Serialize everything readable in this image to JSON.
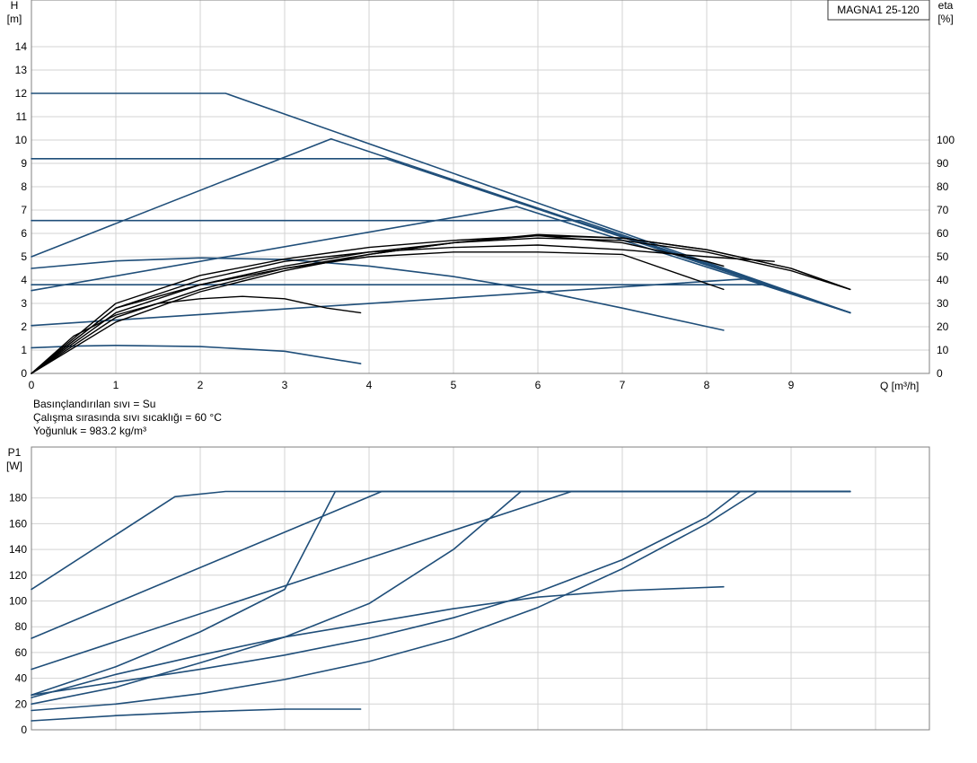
{
  "model_label": "MAGNA1 25-120",
  "info": {
    "liquid": "Basınçlandırılan sıvı = Su",
    "temperature": "Çalışma sırasında sıvı sıcaklığı = 60 °C",
    "density": "Yoğunluk = 983.2 kg/m³"
  },
  "chart_data": [
    {
      "type": "line",
      "x_axis": {
        "label": "Q [m³/h]",
        "range": [
          0,
          10.6
        ],
        "ticks": [
          0,
          1,
          2,
          3,
          4,
          5,
          6,
          7,
          8,
          9
        ]
      },
      "y_axis_left": {
        "label_line1": "H",
        "label_line2": "[m]",
        "range": [
          0,
          16
        ],
        "ticks": [
          0,
          1,
          2,
          3,
          4,
          5,
          6,
          7,
          8,
          9,
          10,
          11,
          12,
          13,
          14
        ]
      },
      "y_axis_right": {
        "label_line1": "eta",
        "label_line2": "[%]",
        "range": [
          0,
          160
        ],
        "ticks": [
          0,
          10,
          20,
          30,
          40,
          50,
          60,
          70,
          80,
          90,
          100
        ]
      },
      "grid": true,
      "head_curves": [
        {
          "points": [
            [
              0,
              12
            ],
            [
              2.3,
              12
            ],
            [
              9.7,
              2.6
            ]
          ]
        },
        {
          "points": [
            [
              0,
              5
            ],
            [
              3.55,
              10.05
            ],
            [
              9.7,
              2.6
            ]
          ]
        },
        {
          "points": [
            [
              0,
              3.55
            ],
            [
              5.75,
              7.15
            ],
            [
              9.7,
              2.6
            ]
          ]
        },
        {
          "points": [
            [
              0,
              2.05
            ],
            [
              8.45,
              4.05
            ],
            [
              9.7,
              2.6
            ]
          ]
        },
        {
          "points": [
            [
              0,
              9.2
            ],
            [
              4.2,
              9.2
            ],
            [
              9.7,
              2.6
            ]
          ]
        },
        {
          "points": [
            [
              0,
              6.55
            ],
            [
              6.5,
              6.55
            ],
            [
              9.7,
              2.6
            ]
          ]
        },
        {
          "points": [
            [
              0,
              3.8
            ],
            [
              8.7,
              3.8
            ],
            [
              9.7,
              2.6
            ]
          ]
        },
        {
          "points": [
            [
              0,
              4.5
            ],
            [
              1,
              4.82
            ],
            [
              2,
              4.95
            ],
            [
              3,
              4.88
            ],
            [
              4,
              4.6
            ],
            [
              5,
              4.15
            ],
            [
              6,
              3.55
            ],
            [
              7,
              2.8
            ],
            [
              8.2,
              1.85
            ]
          ]
        },
        {
          "points": [
            [
              0,
              1.1
            ],
            [
              0.5,
              1.17
            ],
            [
              1,
              1.2
            ],
            [
              2,
              1.15
            ],
            [
              3,
              0.95
            ],
            [
              3.9,
              0.42
            ]
          ]
        }
      ],
      "efficiency_curves": [
        {
          "points": [
            [
              0,
              0
            ],
            [
              0.5,
              16
            ],
            [
              1,
              25
            ],
            [
              1.5,
              30
            ],
            [
              2,
              32
            ],
            [
              2.5,
              33
            ],
            [
              3,
              32
            ],
            [
              3.5,
              28
            ],
            [
              3.9,
              26
            ]
          ]
        },
        {
          "points": [
            [
              0,
              0
            ],
            [
              1,
              28
            ],
            [
              2,
              38
            ],
            [
              3,
              45
            ],
            [
              4,
              50
            ],
            [
              5,
              52
            ],
            [
              6,
              52
            ],
            [
              7,
              51
            ],
            [
              8.2,
              36
            ]
          ]
        },
        {
          "points": [
            [
              0,
              0
            ],
            [
              1,
              30
            ],
            [
              2,
              42
            ],
            [
              3,
              49
            ],
            [
              4,
              54
            ],
            [
              5,
              57
            ],
            [
              6,
              59
            ],
            [
              7,
              56
            ],
            [
              8,
              48
            ],
            [
              8.2,
              46
            ]
          ]
        },
        {
          "points": [
            [
              0,
              0
            ],
            [
              1,
              26
            ],
            [
              2,
              38
            ],
            [
              3,
              46
            ],
            [
              4,
              52
            ],
            [
              5,
              56
            ],
            [
              6,
              58
            ],
            [
              7,
              57
            ],
            [
              8,
              52
            ],
            [
              9,
              44
            ],
            [
              9.7,
              36
            ]
          ]
        },
        {
          "points": [
            [
              0,
              0
            ],
            [
              1,
              24
            ],
            [
              2,
              36
            ],
            [
              3,
              45
            ],
            [
              4,
              51
            ],
            [
              5,
              56
            ],
            [
              6,
              59
            ],
            [
              7,
              58
            ],
            [
              8,
              53
            ],
            [
              9,
              45
            ],
            [
              9.7,
              36
            ]
          ]
        },
        {
          "points": [
            [
              0,
              0
            ],
            [
              1,
              22
            ],
            [
              2,
              35
            ],
            [
              3,
              44
            ],
            [
              4,
              51
            ],
            [
              5,
              56
            ],
            [
              6,
              59.5
            ],
            [
              7,
              58
            ],
            [
              8,
              53
            ],
            [
              9,
              45
            ],
            [
              9.7,
              36
            ]
          ]
        },
        {
          "points": [
            [
              0,
              0
            ],
            [
              1,
              28
            ],
            [
              2,
              40
            ],
            [
              3,
              48
            ],
            [
              4,
              52
            ],
            [
              5,
              54
            ],
            [
              6,
              55
            ],
            [
              7,
              53
            ],
            [
              8,
              50
            ],
            [
              8.8,
              48
            ]
          ]
        }
      ]
    },
    {
      "type": "line",
      "x_axis": {
        "range": [
          0,
          10.6
        ],
        "ticks": [
          0,
          1,
          2,
          3,
          4,
          5,
          6,
          7,
          8,
          9,
          10
        ]
      },
      "y_axis_left": {
        "label_line1": "P1",
        "label_line2": "[W]",
        "range": [
          0,
          200
        ],
        "ticks": [
          0,
          20,
          40,
          60,
          80,
          100,
          120,
          140,
          160,
          180
        ]
      },
      "grid": true,
      "power_curves": [
        {
          "points": [
            [
              0,
              109
            ],
            [
              1.7,
              181
            ],
            [
              2.3,
              185
            ],
            [
              9.7,
              185
            ]
          ]
        },
        {
          "points": [
            [
              0,
              71
            ],
            [
              4.15,
              185
            ],
            [
              9.7,
              185
            ]
          ]
        },
        {
          "points": [
            [
              0,
              47
            ],
            [
              6.4,
              185
            ],
            [
              9.7,
              185
            ]
          ]
        },
        {
          "points": [
            [
              0,
              27
            ],
            [
              1,
              49
            ],
            [
              2,
              76
            ],
            [
              3,
              109
            ],
            [
              3.6,
              185
            ],
            [
              9.7,
              185
            ]
          ]
        },
        {
          "points": [
            [
              0,
              20
            ],
            [
              1,
              33
            ],
            [
              2,
              52
            ],
            [
              3,
              72
            ],
            [
              4,
              98
            ],
            [
              5,
              140
            ],
            [
              5.8,
              185
            ],
            [
              9.7,
              185
            ]
          ]
        },
        {
          "points": [
            [
              0,
              15
            ],
            [
              1,
              20
            ],
            [
              2,
              28
            ],
            [
              3,
              39
            ],
            [
              4,
              53
            ],
            [
              5,
              71
            ],
            [
              6,
              95
            ],
            [
              7,
              125
            ],
            [
              8,
              160
            ],
            [
              8.6,
              185
            ],
            [
              9.7,
              185
            ]
          ]
        },
        {
          "points": [
            [
              0,
              27
            ],
            [
              1,
              37
            ],
            [
              2,
              47
            ],
            [
              3,
              58
            ],
            [
              4,
              71
            ],
            [
              5,
              87
            ],
            [
              6,
              107
            ],
            [
              7,
              132
            ],
            [
              8,
              165
            ],
            [
              8.4,
              185
            ],
            [
              9.7,
              185
            ]
          ]
        },
        {
          "points": [
            [
              0,
              25
            ],
            [
              1,
              43
            ],
            [
              2,
              58
            ],
            [
              3,
              72
            ],
            [
              4,
              83
            ],
            [
              5,
              94
            ],
            [
              6,
              103
            ],
            [
              7,
              108
            ],
            [
              8.2,
              111
            ]
          ]
        },
        {
          "points": [
            [
              0,
              7
            ],
            [
              1,
              11
            ],
            [
              2,
              14
            ],
            [
              3,
              16
            ],
            [
              3.9,
              16
            ]
          ]
        }
      ]
    }
  ]
}
